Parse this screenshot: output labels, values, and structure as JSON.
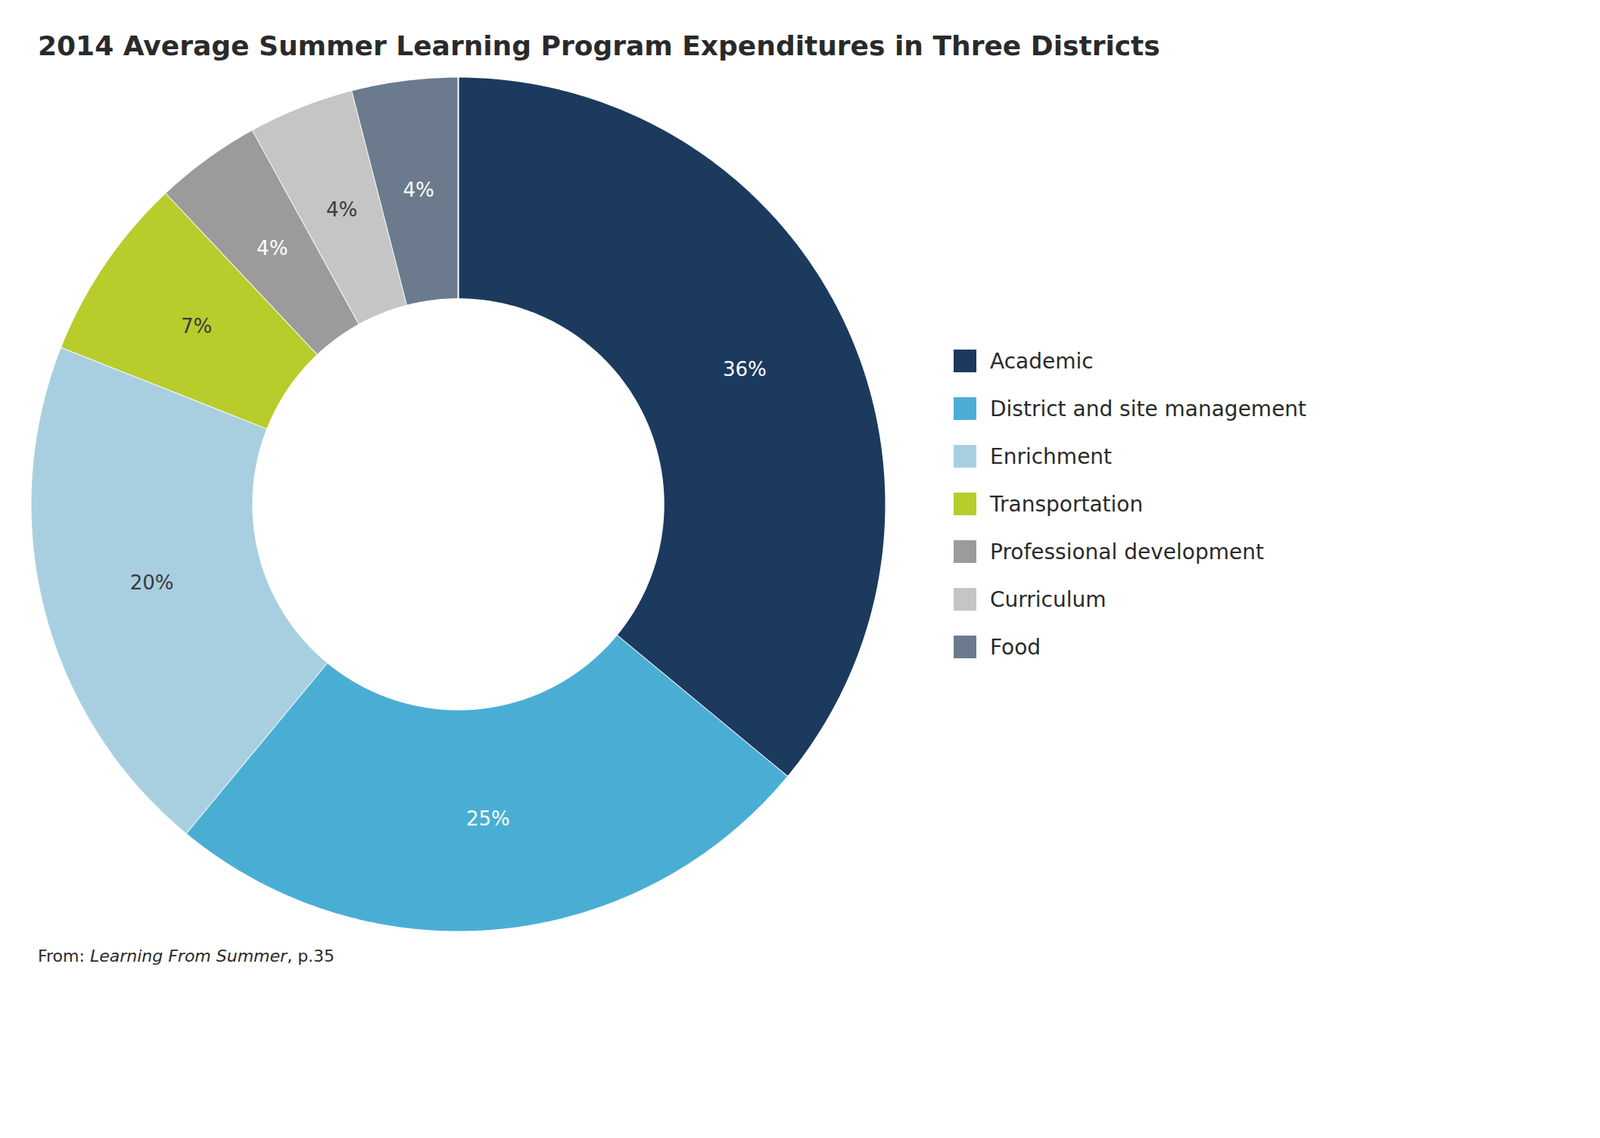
{
  "chart_data": {
    "type": "pie",
    "title": "2014 Average Summer Learning Program Expenditures in Three Districts",
    "categories": [
      "Academic",
      "District and site management",
      "Enrichment",
      "Transportation",
      "Professional development",
      "Curriculum",
      "Food"
    ],
    "values": [
      36,
      25,
      20,
      7,
      4,
      4,
      4
    ],
    "value_labels": [
      "36%",
      "25%",
      "20%",
      "7%",
      "4%",
      "4%",
      "4%"
    ],
    "colors": [
      "#1b3a5e",
      "#4aaed4",
      "#a8cfe0",
      "#b8cc2c",
      "#9b9b9b",
      "#c5c5c5",
      "#6b7b8d"
    ],
    "data_labels": true,
    "legend": "right",
    "annotations": [
      "From: ",
      "Learning From Summer",
      ", p.35"
    ]
  }
}
